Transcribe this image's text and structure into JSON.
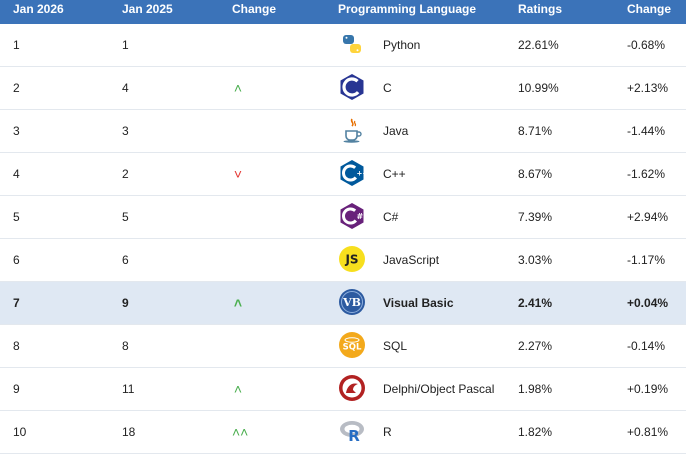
{
  "header": {
    "col_jan2026": "Jan 2026",
    "col_jan2025": "Jan 2025",
    "col_change": "Change",
    "col_language": "Programming Language",
    "col_ratings": "Ratings",
    "col_change2": "Change"
  },
  "rows": [
    {
      "rank2026": "1",
      "rank2025": "1",
      "trend": "",
      "language": "Python",
      "rating": "22.61%",
      "delta": "-0.68%",
      "icon": "python-logo-icon",
      "highlighted": false
    },
    {
      "rank2026": "2",
      "rank2025": "4",
      "trend": "up",
      "language": "C",
      "rating": "10.99%",
      "delta": "+2.13%",
      "icon": "c-logo-icon",
      "highlighted": false
    },
    {
      "rank2026": "3",
      "rank2025": "3",
      "trend": "",
      "language": "Java",
      "rating": "8.71%",
      "delta": "-1.44%",
      "icon": "java-logo-icon",
      "highlighted": false
    },
    {
      "rank2026": "4",
      "rank2025": "2",
      "trend": "down",
      "language": "C++",
      "rating": "8.67%",
      "delta": "-1.62%",
      "icon": "cpp-logo-icon",
      "highlighted": false
    },
    {
      "rank2026": "5",
      "rank2025": "5",
      "trend": "",
      "language": "C#",
      "rating": "7.39%",
      "delta": "+2.94%",
      "icon": "csharp-logo-icon",
      "highlighted": false
    },
    {
      "rank2026": "6",
      "rank2025": "6",
      "trend": "",
      "language": "JavaScript",
      "rating": "3.03%",
      "delta": "-1.17%",
      "icon": "javascript-logo-icon",
      "highlighted": false
    },
    {
      "rank2026": "7",
      "rank2025": "9",
      "trend": "up",
      "language": "Visual Basic",
      "rating": "2.41%",
      "delta": "+0.04%",
      "icon": "visual-basic-logo-icon",
      "highlighted": true
    },
    {
      "rank2026": "8",
      "rank2025": "8",
      "trend": "",
      "language": "SQL",
      "rating": "2.27%",
      "delta": "-0.14%",
      "icon": "sql-logo-icon",
      "highlighted": false
    },
    {
      "rank2026": "9",
      "rank2025": "11",
      "trend": "up",
      "language": "Delphi/Object Pascal",
      "rating": "1.98%",
      "delta": "+0.19%",
      "icon": "delphi-logo-icon",
      "highlighted": false
    },
    {
      "rank2026": "10",
      "rank2025": "18",
      "trend": "double-up",
      "language": "R",
      "rating": "1.82%",
      "delta": "+0.81%",
      "icon": "r-logo-icon",
      "highlighted": false
    }
  ],
  "colors": {
    "header_bg": "#3b73b9",
    "highlight_bg": "#dfe8f3",
    "trend_up": "#4caf50",
    "trend_down": "#e53935"
  }
}
